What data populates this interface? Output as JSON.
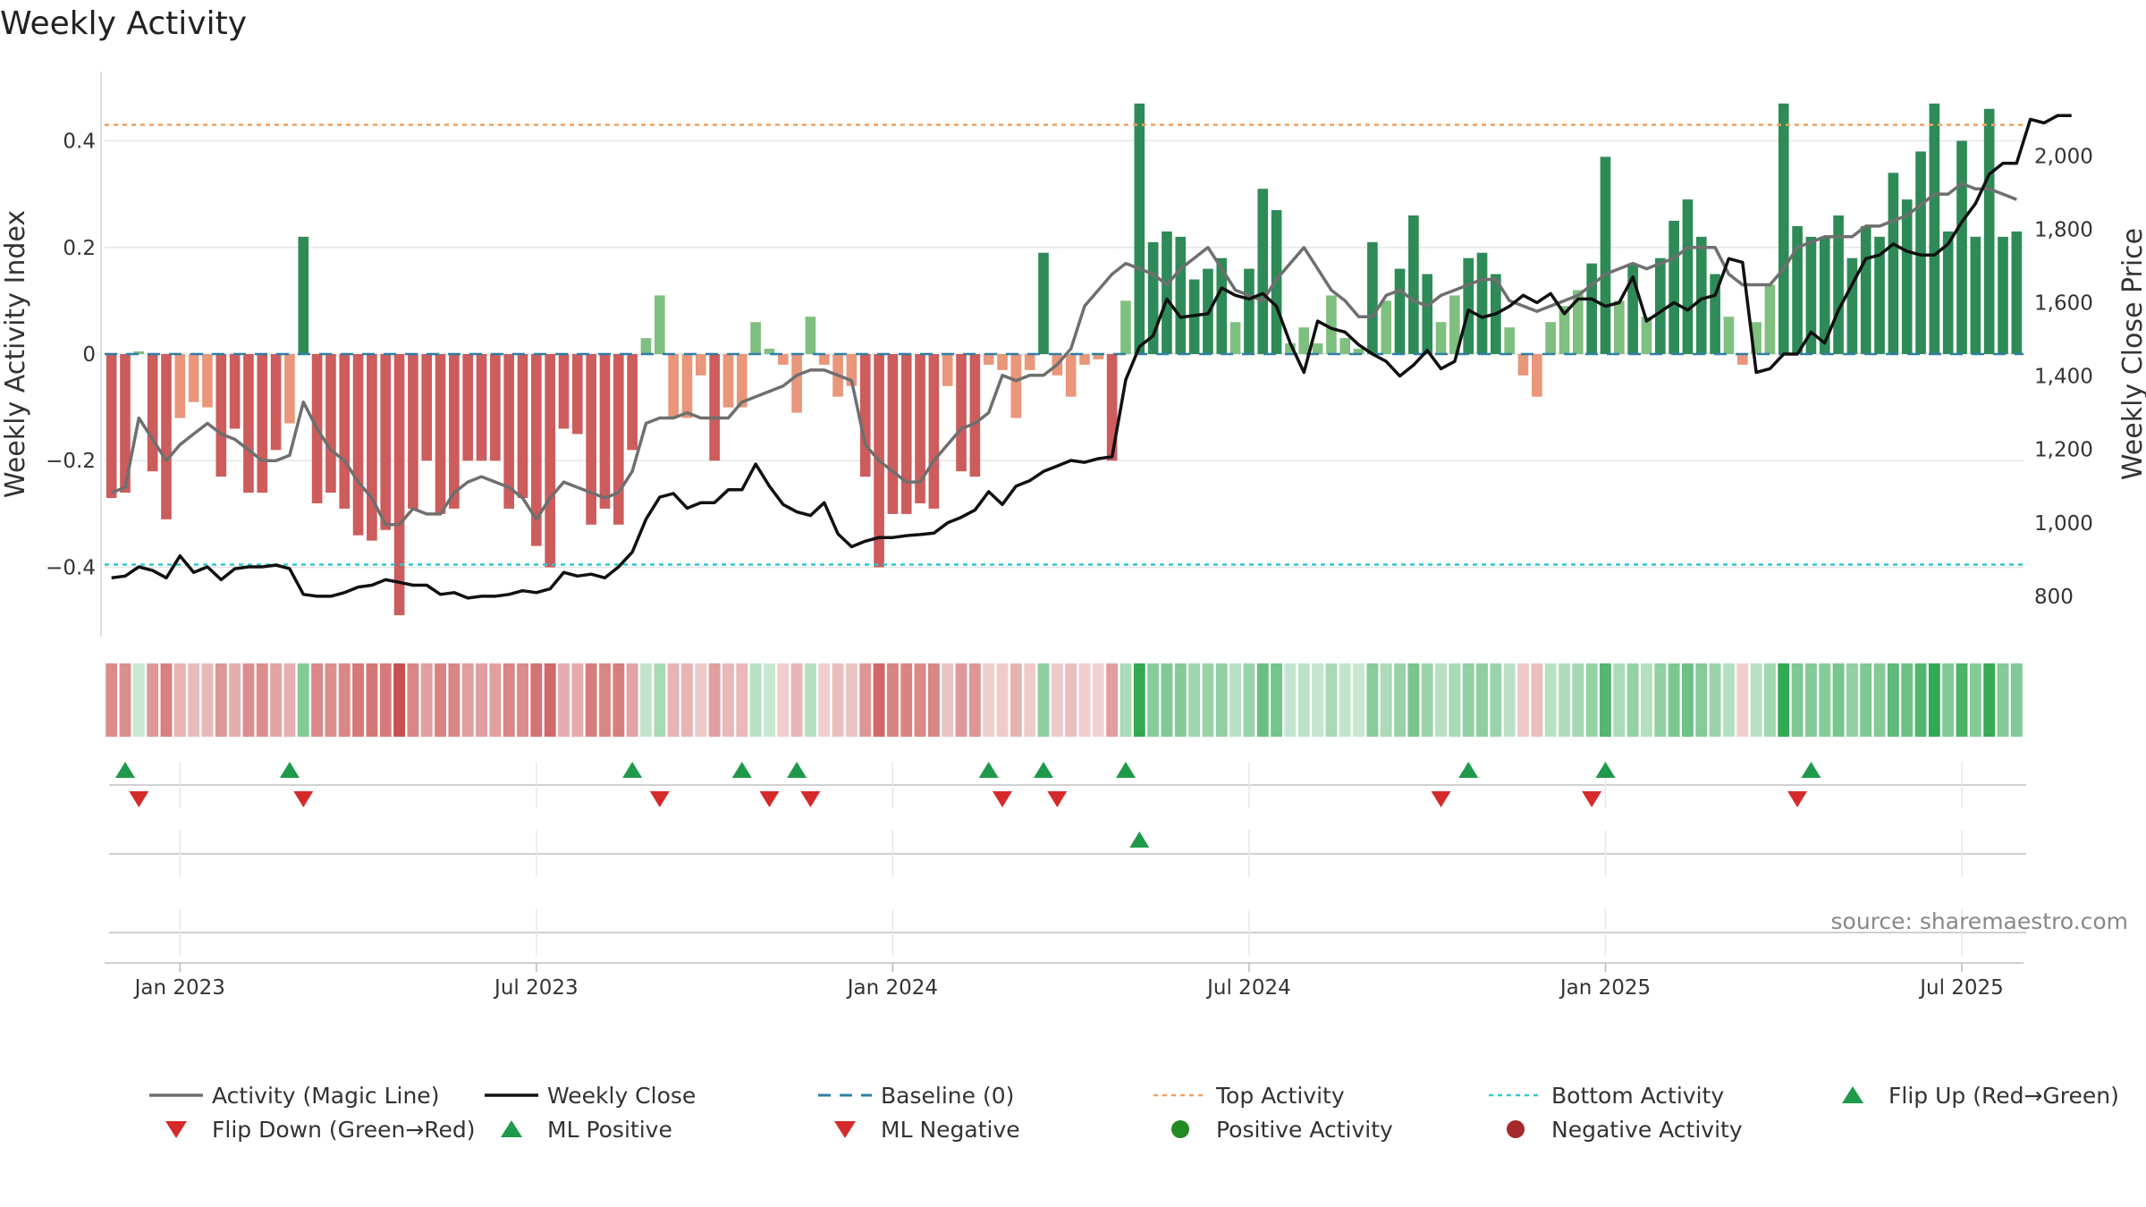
{
  "chart_data": {
    "type": "bar",
    "title": "Weekly Activity",
    "ylabel": "Weekly Activity Index",
    "y2label": "Weekly Close Price",
    "ylim": [
      -0.53,
      0.53
    ],
    "y2lim": [
      690,
      2230
    ],
    "yticks": [
      -0.4,
      -0.2,
      0,
      0.2,
      0.4
    ],
    "ytick_labels": [
      "−0.4",
      "−0.2",
      "0",
      "0.2",
      "0.4"
    ],
    "y2ticks": [
      800,
      1000,
      1200,
      1400,
      1600,
      1800,
      2000
    ],
    "y2tick_labels": [
      "800",
      "1,000",
      "1,200",
      "1,400",
      "1,600",
      "1,800",
      "2,000"
    ],
    "xticks": [
      5,
      31,
      57,
      83,
      109,
      135
    ],
    "xtick_labels": [
      "Jan 2023",
      "Jul 2023",
      "Jan 2024",
      "Jul 2024",
      "Jan 2025",
      "Jul 2025"
    ],
    "top_activity": 0.43,
    "bottom_activity": -0.395,
    "activity": [
      -0.27,
      -0.26,
      0.005,
      -0.22,
      -0.31,
      -0.12,
      -0.09,
      -0.1,
      -0.23,
      -0.14,
      -0.26,
      -0.26,
      -0.18,
      -0.13,
      0.22,
      -0.28,
      -0.26,
      -0.29,
      -0.34,
      -0.35,
      -0.33,
      -0.49,
      -0.29,
      -0.2,
      -0.3,
      -0.29,
      -0.2,
      -0.2,
      -0.2,
      -0.29,
      -0.27,
      -0.36,
      -0.4,
      -0.14,
      -0.15,
      -0.32,
      -0.29,
      -0.32,
      -0.18,
      0.03,
      0.11,
      -0.12,
      -0.12,
      -0.04,
      -0.2,
      -0.1,
      -0.1,
      0.06,
      0.01,
      -0.02,
      -0.11,
      0.07,
      -0.02,
      -0.08,
      -0.06,
      -0.23,
      -0.4,
      -0.3,
      -0.3,
      -0.28,
      -0.29,
      -0.06,
      -0.22,
      -0.23,
      -0.02,
      -0.03,
      -0.12,
      -0.03,
      0.19,
      -0.04,
      -0.08,
      -0.02,
      -0.01,
      -0.2,
      0.1,
      0.47,
      0.21,
      0.23,
      0.22,
      0.14,
      0.16,
      0.18,
      0.06,
      0.16,
      0.31,
      0.27,
      0.02,
      0.05,
      0.02,
      0.11,
      0.03,
      0.01,
      0.21,
      0.1,
      0.16,
      0.26,
      0.15,
      0.06,
      0.11,
      0.18,
      0.19,
      0.15,
      0.05,
      -0.04,
      -0.08,
      0.06,
      0.09,
      0.12,
      0.17,
      0.37,
      0.1,
      0.17,
      0.07,
      0.18,
      0.25,
      0.29,
      0.22,
      0.15,
      0.07,
      -0.02,
      0.06,
      0.13,
      0.47,
      0.24,
      0.22,
      0.22,
      0.26,
      0.18,
      0.24,
      0.22,
      0.34,
      0.29,
      0.38,
      0.47,
      0.23,
      0.4,
      0.22,
      0.46,
      0.22,
      0.23
    ],
    "magic_line": [
      -0.26,
      -0.25,
      -0.12,
      -0.16,
      -0.2,
      -0.17,
      -0.15,
      -0.13,
      -0.15,
      -0.16,
      -0.18,
      -0.2,
      -0.2,
      -0.19,
      -0.09,
      -0.14,
      -0.18,
      -0.2,
      -0.24,
      -0.27,
      -0.32,
      -0.32,
      -0.29,
      -0.3,
      -0.3,
      -0.26,
      -0.24,
      -0.23,
      -0.24,
      -0.25,
      -0.27,
      -0.31,
      -0.27,
      -0.24,
      -0.25,
      -0.26,
      -0.27,
      -0.26,
      -0.22,
      -0.13,
      -0.12,
      -0.12,
      -0.11,
      -0.12,
      -0.12,
      -0.12,
      -0.09,
      -0.08,
      -0.07,
      -0.06,
      -0.04,
      -0.03,
      -0.03,
      -0.04,
      -0.05,
      -0.17,
      -0.2,
      -0.22,
      -0.24,
      -0.24,
      -0.2,
      -0.17,
      -0.14,
      -0.13,
      -0.11,
      -0.04,
      -0.05,
      -0.04,
      -0.04,
      -0.02,
      0.01,
      0.09,
      0.12,
      0.15,
      0.17,
      0.16,
      0.15,
      0.13,
      0.16,
      0.18,
      0.2,
      0.16,
      0.12,
      0.11,
      0.1,
      0.14,
      0.17,
      0.2,
      0.16,
      0.12,
      0.1,
      0.07,
      0.07,
      0.11,
      0.12,
      0.1,
      0.09,
      0.11,
      0.12,
      0.13,
      0.14,
      0.14,
      0.1,
      0.09,
      0.08,
      0.09,
      0.1,
      0.11,
      0.13,
      0.15,
      0.16,
      0.17,
      0.16,
      0.17,
      0.18,
      0.2,
      0.2,
      0.2,
      0.15,
      0.13,
      0.13,
      0.13,
      0.16,
      0.2,
      0.21,
      0.22,
      0.22,
      0.22,
      0.24,
      0.24,
      0.25,
      0.26,
      0.28,
      0.3,
      0.3,
      0.32,
      0.31,
      0.31,
      0.3,
      0.29
    ],
    "weekly_close": [
      850,
      855,
      880,
      870,
      850,
      910,
      865,
      880,
      845,
      875,
      880,
      880,
      885,
      875,
      805,
      800,
      800,
      810,
      825,
      830,
      845,
      838,
      830,
      830,
      805,
      810,
      795,
      800,
      800,
      805,
      815,
      810,
      820,
      865,
      855,
      860,
      850,
      880,
      920,
      1010,
      1070,
      1080,
      1040,
      1055,
      1055,
      1090,
      1090,
      1160,
      1100,
      1050,
      1030,
      1020,
      1055,
      970,
      935,
      950,
      960,
      960,
      965,
      968,
      972,
      1000,
      1015,
      1035,
      1085,
      1050,
      1100,
      1115,
      1140,
      1155,
      1170,
      1165,
      1175,
      1180,
      1390,
      1480,
      1510,
      1610,
      1560,
      1565,
      1570,
      1640,
      1620,
      1610,
      1625,
      1590,
      1490,
      1410,
      1550,
      1530,
      1520,
      1485,
      1460,
      1440,
      1400,
      1430,
      1470,
      1420,
      1440,
      1580,
      1560,
      1570,
      1590,
      1620,
      1600,
      1625,
      1570,
      1610,
      1610,
      1590,
      1600,
      1670,
      1550,
      1575,
      1600,
      1580,
      1610,
      1620,
      1720,
      1710,
      1410,
      1420,
      1460,
      1460,
      1520,
      1490,
      1580,
      1650,
      1720,
      1730,
      1760,
      1740,
      1730,
      1730,
      1760,
      1820,
      1870,
      1950,
      1980,
      1980,
      2100,
      2090,
      2110,
      2110
    ],
    "heat_rows": [
      "flips",
      "ml",
      "ml_pos_neg"
    ],
    "flip_up": [
      1,
      13,
      38,
      46,
      50,
      64,
      68,
      74,
      99,
      109,
      124
    ],
    "flip_down": [
      2,
      14,
      40,
      48,
      51,
      65,
      69,
      97,
      108,
      123
    ],
    "ml_positive": [
      75
    ],
    "source": "source: sharemaestro.com",
    "legend": [
      {
        "label": "Activity (Magic Line)",
        "style": "line",
        "color": "#6f6f6f"
      },
      {
        "label": "Weekly Close",
        "style": "line",
        "color": "#111111"
      },
      {
        "label": "Baseline (0)",
        "style": "dash",
        "color": "#2f7fa6"
      },
      {
        "label": "Top Activity",
        "style": "dot",
        "color": "#f0a060"
      },
      {
        "label": "Bottom Activity",
        "style": "dot",
        "color": "#30c8d0"
      },
      {
        "label": "Flip Up (Red→Green)",
        "style": "tri-up",
        "color": "#1f9a4a"
      },
      {
        "label": "Flip Down (Green→Red)",
        "style": "tri-down",
        "color": "#d62a2a"
      },
      {
        "label": "ML Positive",
        "style": "tri-up",
        "color": "#1f9a4a"
      },
      {
        "label": "ML Negative",
        "style": "tri-down",
        "color": "#d62a2a"
      },
      {
        "label": "Positive Activity",
        "style": "circle",
        "color": "#228b22"
      },
      {
        "label": "Negative Activity",
        "style": "circle",
        "color": "#a52a2a"
      }
    ],
    "colors": {
      "pos_strong": "#2e8b57",
      "pos_light": "#7fbf7f",
      "neg_strong": "#cd5c5c",
      "neg_light": "#e9967a",
      "magic": "#6f6f6f",
      "close": "#111111",
      "baseline": "#2f7fa6",
      "top": "#f0a060",
      "bottom": "#30c8d0",
      "grid": "#e6e6e6"
    }
  }
}
